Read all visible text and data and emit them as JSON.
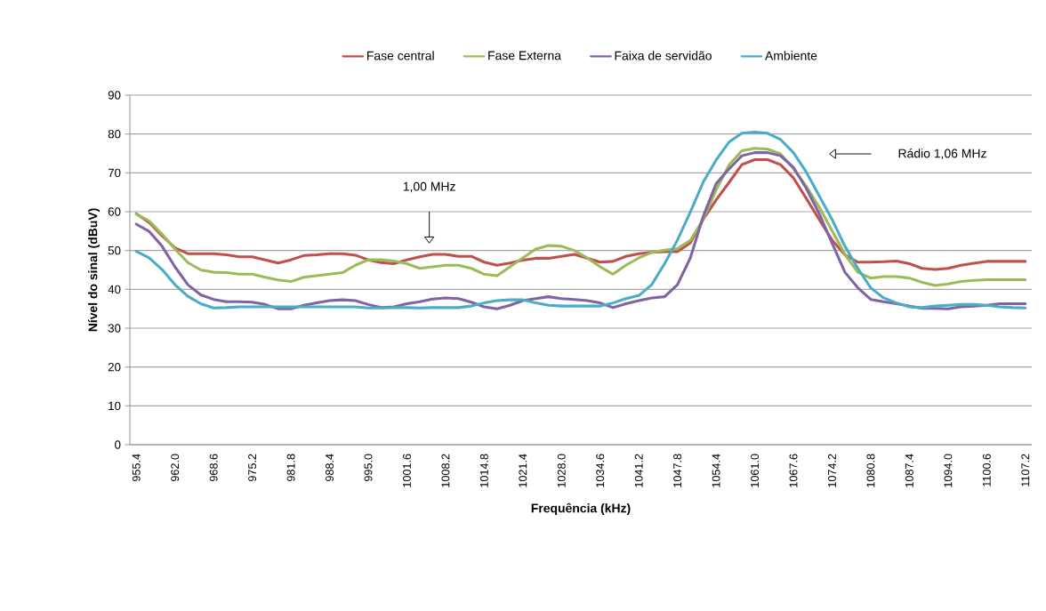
{
  "chart_data": {
    "type": "line",
    "xlabel": "Frequência (kHz)",
    "ylabel": "Nível do sinal (dBuV)",
    "categories": [
      "955.4",
      null,
      null,
      "962.0",
      null,
      null,
      "968.6",
      null,
      null,
      "975.2",
      null,
      null,
      "981.8",
      null,
      null,
      "988.4",
      null,
      null,
      "995.0",
      null,
      null,
      "1001.6",
      null,
      null,
      "1008.2",
      null,
      null,
      "1014.8",
      null,
      null,
      "1021.4",
      null,
      null,
      "1028.0",
      null,
      null,
      "1034.6",
      null,
      null,
      "1041.2",
      null,
      null,
      "1047.8",
      null,
      null,
      "1054.4",
      null,
      null,
      "1061.0",
      null,
      null,
      "1067.6",
      null,
      null,
      "1074.2",
      null,
      null,
      "1080.8",
      null,
      null,
      "1087.4",
      null,
      null,
      "1094.0",
      null,
      null,
      "1100.6",
      null,
      null,
      "1107.2"
    ],
    "series": [
      {
        "name": "Fase central",
        "color": "#c0504d",
        "values": [
          59.5,
          57.2,
          53.8,
          50.7,
          49.2,
          49.2,
          49.2,
          48.9,
          48.4,
          48.4,
          47.6,
          46.8,
          47.6,
          48.7,
          48.9,
          49.2,
          49.2,
          48.8,
          47.6,
          46.9,
          46.6,
          47.6,
          48.4,
          49.0,
          49.0,
          48.5,
          48.5,
          47.0,
          46.2,
          46.8,
          47.5,
          48.0,
          48.0,
          48.5,
          49.0,
          48.0,
          47.0,
          47.2,
          48.5,
          49.2,
          49.5,
          49.7,
          49.7,
          52.0,
          58.0,
          63.0,
          67.5,
          72.1,
          73.4,
          73.4,
          72.1,
          68.7,
          63.4,
          58.0,
          52.7,
          48.9,
          47.0,
          47.0,
          47.1,
          47.3,
          46.6,
          45.4,
          45.1,
          45.4,
          46.2,
          46.7,
          47.2,
          47.2,
          47.2,
          47.2
        ]
      },
      {
        "name": "Fase Externa",
        "color": "#9bbb59",
        "values": [
          59.4,
          57.6,
          54.2,
          50.4,
          46.9,
          45.0,
          44.4,
          44.3,
          43.9,
          43.9,
          43.1,
          42.4,
          42.0,
          43.1,
          43.5,
          43.9,
          44.3,
          46.2,
          47.6,
          47.6,
          47.3,
          46.6,
          45.4,
          45.8,
          46.2,
          46.2,
          45.4,
          43.9,
          43.5,
          45.8,
          48.1,
          50.4,
          51.3,
          51.1,
          50.0,
          48.1,
          45.8,
          43.9,
          46.2,
          48.1,
          49.5,
          50.1,
          50.5,
          52.6,
          58.0,
          65.6,
          72.0,
          75.7,
          76.3,
          76.1,
          74.9,
          71.1,
          66.5,
          61.2,
          55.1,
          49.0,
          44.4,
          42.9,
          43.3,
          43.3,
          42.9,
          41.8,
          41.0,
          41.4,
          42.0,
          42.3,
          42.5,
          42.5,
          42.5,
          42.5
        ]
      },
      {
        "name": "Faixa de servidão",
        "color": "#8064a2",
        "values": [
          56.8,
          54.9,
          51.1,
          45.8,
          41.2,
          38.6,
          37.4,
          36.8,
          36.8,
          36.7,
          36.1,
          35.0,
          35.0,
          35.9,
          36.5,
          37.1,
          37.3,
          37.1,
          36.1,
          35.3,
          35.5,
          36.3,
          36.8,
          37.5,
          37.8,
          37.6,
          36.7,
          35.5,
          35.0,
          35.9,
          37.1,
          37.6,
          38.1,
          37.6,
          37.4,
          37.1,
          36.5,
          35.3,
          36.3,
          37.1,
          37.8,
          38.1,
          41.2,
          48.1,
          58.8,
          67.2,
          71.0,
          74.4,
          75.2,
          75.2,
          74.4,
          71.4,
          66.0,
          59.5,
          51.9,
          44.4,
          40.4,
          37.4,
          36.8,
          36.3,
          35.7,
          35.1,
          35.1,
          35.0,
          35.5,
          35.7,
          35.9,
          36.3,
          36.3,
          36.3
        ]
      },
      {
        "name": "Ambiente",
        "color": "#4bacc6",
        "values": [
          49.8,
          48.1,
          45.1,
          41.2,
          38.2,
          36.3,
          35.2,
          35.3,
          35.5,
          35.5,
          35.5,
          35.5,
          35.5,
          35.5,
          35.5,
          35.5,
          35.5,
          35.5,
          35.2,
          35.2,
          35.3,
          35.3,
          35.2,
          35.3,
          35.3,
          35.3,
          35.7,
          36.5,
          37.1,
          37.3,
          37.3,
          36.5,
          35.9,
          35.7,
          35.7,
          35.7,
          35.7,
          36.5,
          37.6,
          38.4,
          41.2,
          46.6,
          52.7,
          59.9,
          67.6,
          73.3,
          77.9,
          80.2,
          80.5,
          80.2,
          78.6,
          75.2,
          70.2,
          64.1,
          58.0,
          51.1,
          45.4,
          40.4,
          37.8,
          36.5,
          35.5,
          35.3,
          35.7,
          35.9,
          36.1,
          36.1,
          35.9,
          35.5,
          35.3,
          35.2
        ]
      }
    ],
    "ylim": [
      0,
      90
    ],
    "yticks": [
      0,
      10,
      20,
      30,
      40,
      50,
      60,
      70,
      80,
      90
    ],
    "grid": "y",
    "legend": "top",
    "marker": "none",
    "line_style": "solid",
    "annotations": [
      "1,00 MHz",
      "Rádio 1,06 MHz"
    ]
  }
}
